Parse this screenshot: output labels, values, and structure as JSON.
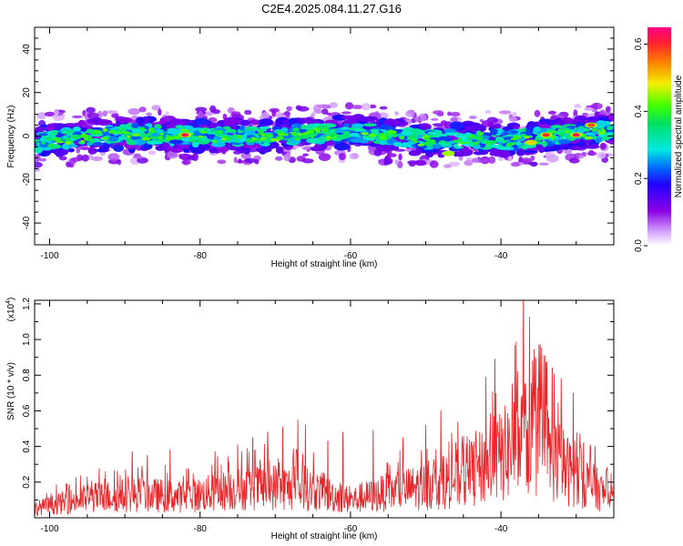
{
  "title": "C2E4.2025.084.11.27.G16",
  "chart_data": [
    {
      "type": "heatmap",
      "xlabel": "Height of straight line (km)",
      "ylabel": "Frequency (Hz)",
      "xlim": [
        -102,
        -25
      ],
      "ylim": [
        -50,
        50
      ],
      "xticks": [
        -100,
        -80,
        -60,
        -40
      ],
      "yticks": [
        -40,
        -20,
        0,
        20,
        40
      ],
      "colorbar": {
        "label": "Normalized spectral amplitude",
        "range": [
          0.0,
          0.65
        ],
        "ticks": [
          "0.0",
          "0.2",
          "0.4",
          "0.6"
        ]
      },
      "band": {
        "center_freq_hz": [
          [
            -102,
            -3
          ],
          [
            -95,
            0
          ],
          [
            -88,
            1
          ],
          [
            -80,
            0
          ],
          [
            -72,
            0
          ],
          [
            -65,
            1
          ],
          [
            -58,
            2
          ],
          [
            -50,
            -2
          ],
          [
            -44,
            -1
          ],
          [
            -38,
            -2
          ],
          [
            -32,
            1
          ],
          [
            -26,
            2
          ]
        ],
        "half_width_hz": 4,
        "hotspots": [
          {
            "x": -82,
            "f": 0.5,
            "amp": 0.62
          },
          {
            "x": -47,
            "f": -8,
            "amp": 0.45
          },
          {
            "x": -36,
            "f": -3,
            "amp": 0.5
          },
          {
            "x": -34,
            "f": 0.5,
            "amp": 0.6
          },
          {
            "x": -30,
            "f": 0.5,
            "amp": 0.62
          },
          {
            "x": -28,
            "f": 5,
            "amp": 0.58
          }
        ]
      }
    },
    {
      "type": "line",
      "xlabel": "Height of straight line (km)",
      "ylabel": "SNR (10 * v/v)",
      "scale_label": "(x10",
      "scale_exp": "4",
      "scale_close": ")",
      "xlim": [
        -102,
        -25
      ],
      "ylim": [
        0.0,
        1.22
      ],
      "xticks": [
        -100,
        -80,
        -60,
        -40
      ],
      "yticks": [
        "0.2",
        "0.4",
        "0.6",
        "0.8",
        "1.0",
        "1.2"
      ],
      "series": [
        {
          "color": "#e8262a",
          "envelope": [
            [
              -102,
              0.08
            ],
            [
              -95,
              0.17
            ],
            [
              -88,
              0.2
            ],
            [
              -82,
              0.18
            ],
            [
              -76,
              0.24
            ],
            [
              -70,
              0.27
            ],
            [
              -65,
              0.24
            ],
            [
              -60,
              0.15
            ],
            [
              -55,
              0.22
            ],
            [
              -50,
              0.27
            ],
            [
              -45,
              0.35
            ],
            [
              -41,
              0.48
            ],
            [
              -38,
              0.62
            ],
            [
              -36,
              0.72
            ],
            [
              -34,
              0.58
            ],
            [
              -31,
              0.4
            ],
            [
              -28,
              0.28
            ],
            [
              -25,
              0.15
            ]
          ],
          "peaks": [
            [
              -91,
              0.26
            ],
            [
              -89,
              0.37
            ],
            [
              -87,
              0.35
            ],
            [
              -84,
              0.38
            ],
            [
              -78,
              0.37
            ],
            [
              -75,
              0.41
            ],
            [
              -73,
              0.45
            ],
            [
              -71,
              0.48
            ],
            [
              -69,
              0.51
            ],
            [
              -67,
              0.55
            ],
            [
              -66,
              0.52
            ],
            [
              -63,
              0.43
            ],
            [
              -61,
              0.48
            ],
            [
              -57,
              0.49
            ],
            [
              -53,
              0.45
            ],
            [
              -50,
              0.52
            ],
            [
              -48,
              0.6
            ],
            [
              -46,
              0.42
            ],
            [
              -44,
              0.4
            ],
            [
              -42,
              0.79
            ],
            [
              -40.8,
              0.89
            ],
            [
              -38.5,
              0.75
            ],
            [
              -37.0,
              1.22
            ],
            [
              -35.8,
              0.88
            ],
            [
              -34.8,
              0.97
            ],
            [
              -33.2,
              0.84
            ],
            [
              -32.0,
              0.78
            ],
            [
              -30.4,
              0.7
            ],
            [
              -29.0,
              0.42
            ],
            [
              -27.5,
              0.4
            ],
            [
              -26.0,
              0.27
            ]
          ]
        }
      ]
    }
  ]
}
